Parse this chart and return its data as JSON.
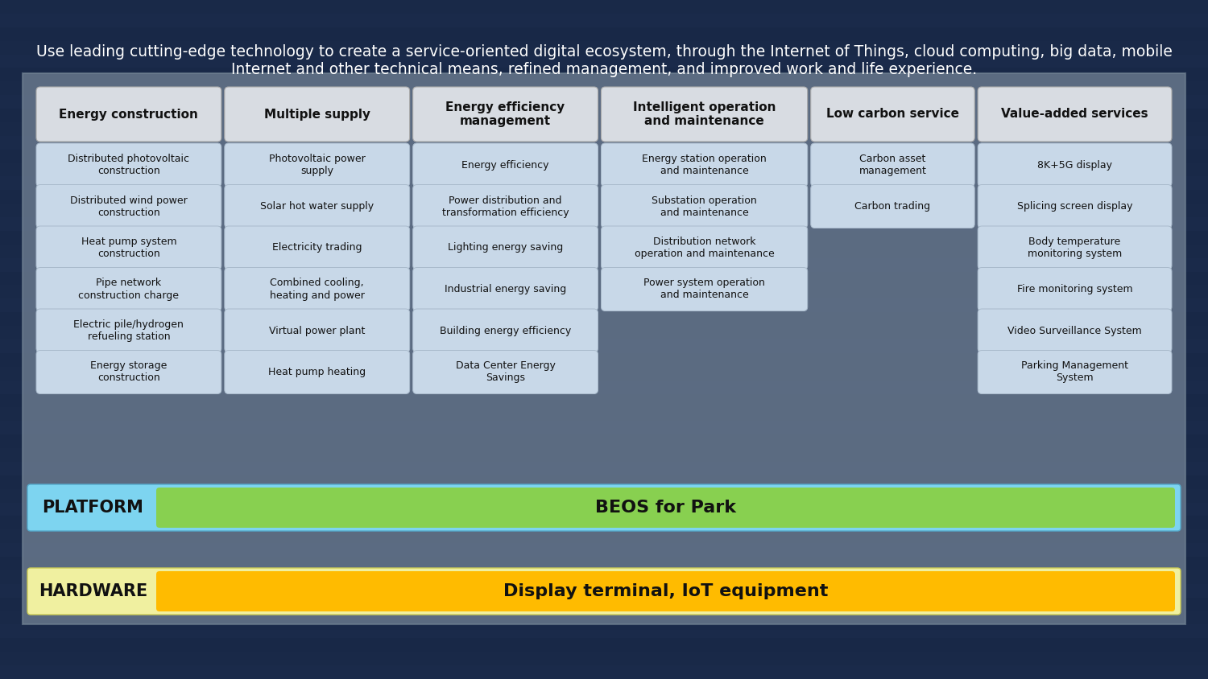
{
  "subtitle": "Use leading cutting-edge technology to create a service-oriented digital ecosystem, through the Internet of Things, cloud computing, big data, mobile\nInternet and other technical means, refined management, and improved work and life experience.",
  "subtitle_color": "#ffffff",
  "subtitle_fontsize": 13.5,
  "bg_top_color": "#1a2a4a",
  "bg_bottom_color": "#0d1a30",
  "panel_facecolor": "#8a9aaa",
  "panel_alpha": 0.55,
  "columns": [
    {
      "header": "Energy construction",
      "items": [
        "Distributed photovoltaic\nconstruction",
        "Distributed wind power\nconstruction",
        "Heat pump system\nconstruction",
        "Pipe network\nconstruction charge",
        "Electric pile/hydrogen\nrefueling station",
        "Energy storage\nconstruction"
      ]
    },
    {
      "header": "Multiple supply",
      "items": [
        "Photovoltaic power\nsupply",
        "Solar hot water supply",
        "Electricity trading",
        "Combined cooling,\nheating and power",
        "Virtual power plant",
        "Heat pump heating"
      ]
    },
    {
      "header": "Energy efficiency\nmanagement",
      "items": [
        "Energy efficiency",
        "Power distribution and\ntransformation efficiency",
        "Lighting energy saving",
        "Industrial energy saving",
        "Building energy efficiency",
        "Data Center Energy\nSavings"
      ]
    },
    {
      "header": "Intelligent operation\nand maintenance",
      "items": [
        "Energy station operation\nand maintenance",
        "Substation operation\nand maintenance",
        "Distribution network\noperation and maintenance",
        "Power system operation\nand maintenance",
        "",
        ""
      ]
    },
    {
      "header": "Low carbon service",
      "items": [
        "Carbon asset\nmanagement",
        "Carbon trading",
        "",
        "",
        "",
        ""
      ]
    },
    {
      "header": "Value-added services",
      "items": [
        "8K+5G display",
        "Splicing screen display",
        "Body temperature\nmonitoring system",
        "Fire monitoring system",
        "Video Surveillance System",
        "Parking Management\nSystem"
      ]
    }
  ],
  "header_bg": "#d8dce2",
  "header_border": "#aaaaaa",
  "header_fontsize": 11,
  "item_bg": "#c8d8e8",
  "item_border": "#aabbcc",
  "item_fontsize": 9,
  "platform_label": "PLATFORM",
  "platform_text": "BEOS for Park",
  "platform_outer_color": "#7dd4f0",
  "platform_inner_color": "#88d050",
  "hardware_label": "HARDWARE",
  "hardware_text": "Display terminal, IoT equipment",
  "hardware_outer_color": "#f0f0a0",
  "hardware_inner_color": "#ffbb00",
  "label_fontsize": 15,
  "bar_text_fontsize": 16
}
